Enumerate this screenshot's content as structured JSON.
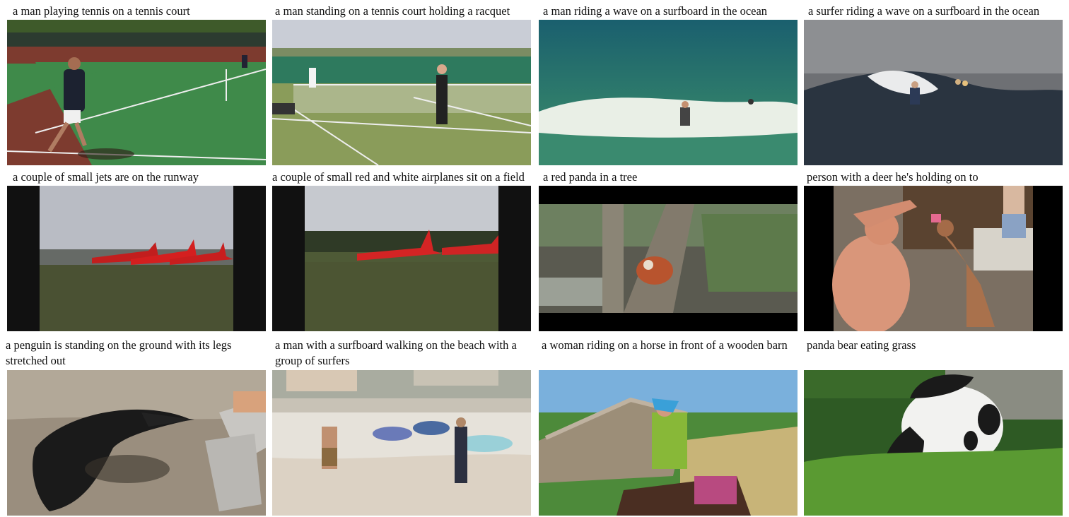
{
  "grid": {
    "items": [
      {
        "caption": "a man playing tennis on a tennis court",
        "scene": "tennis-court-player"
      },
      {
        "caption": "a man standing on a tennis court holding a racquet",
        "scene": "tennis-court-standing"
      },
      {
        "caption": "a man riding a wave on a surfboard in the ocean",
        "scene": "surfer-wave-green"
      },
      {
        "caption": "a surfer riding a wave on a surfboard in the ocean",
        "scene": "surfer-wave-dark"
      },
      {
        "caption": "a couple of small jets are on the runway",
        "scene": "red-jets-runway"
      },
      {
        "caption": "a couple of small red and white airplanes sit on a field",
        "scene": "red-planes-field"
      },
      {
        "caption": "a red panda in a tree",
        "scene": "red-panda-tree"
      },
      {
        "caption": "person with a deer he's holding on to",
        "scene": "man-feeding-fawn"
      },
      {
        "caption": "a penguin is standing on the ground with its legs stretched out",
        "scene": "penguin-ground"
      },
      {
        "caption": "a man with a surfboard walking on the beach with a group of surfers",
        "scene": "beach-surfers"
      },
      {
        "caption": "a woman riding on a horse in front of a wooden barn",
        "scene": "woman-horse-barn"
      },
      {
        "caption": "panda bear eating grass",
        "scene": "panda-eating-grass"
      }
    ]
  }
}
